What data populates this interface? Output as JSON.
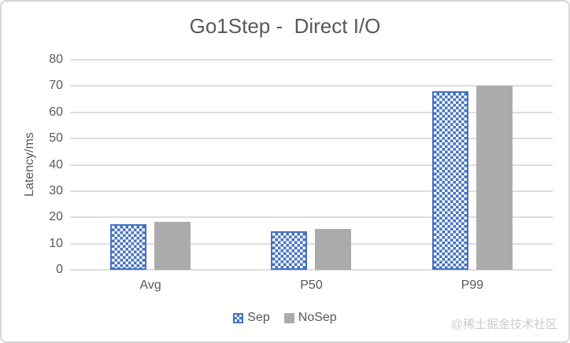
{
  "card": {
    "watermark": "@稀土掘金技术社区"
  },
  "chart_data": {
    "type": "bar",
    "title": "Go1Step -  Direct I/O",
    "categories": [
      "Avg",
      "P50",
      "P99"
    ],
    "series": [
      {
        "name": "Sep",
        "values": [
          17.5,
          14.8,
          68
        ],
        "style": "checker",
        "color": "#4472C4"
      },
      {
        "name": "NoSep",
        "values": [
          18.2,
          15.6,
          70
        ],
        "style": "solid",
        "color": "#ABABAB"
      }
    ],
    "xlabel": "",
    "ylabel": "Latency/ms",
    "ylim": [
      0,
      80
    ],
    "yticks": [
      0,
      10,
      20,
      30,
      40,
      50,
      60,
      70,
      80
    ],
    "grid": true,
    "legend_position": "bottom",
    "colors": {
      "text": "#595959",
      "gridline": "#dedede",
      "sep_blue": "#4472C4",
      "nosep_gray": "#ABABAB",
      "watermark": "#cbcbcb"
    }
  }
}
